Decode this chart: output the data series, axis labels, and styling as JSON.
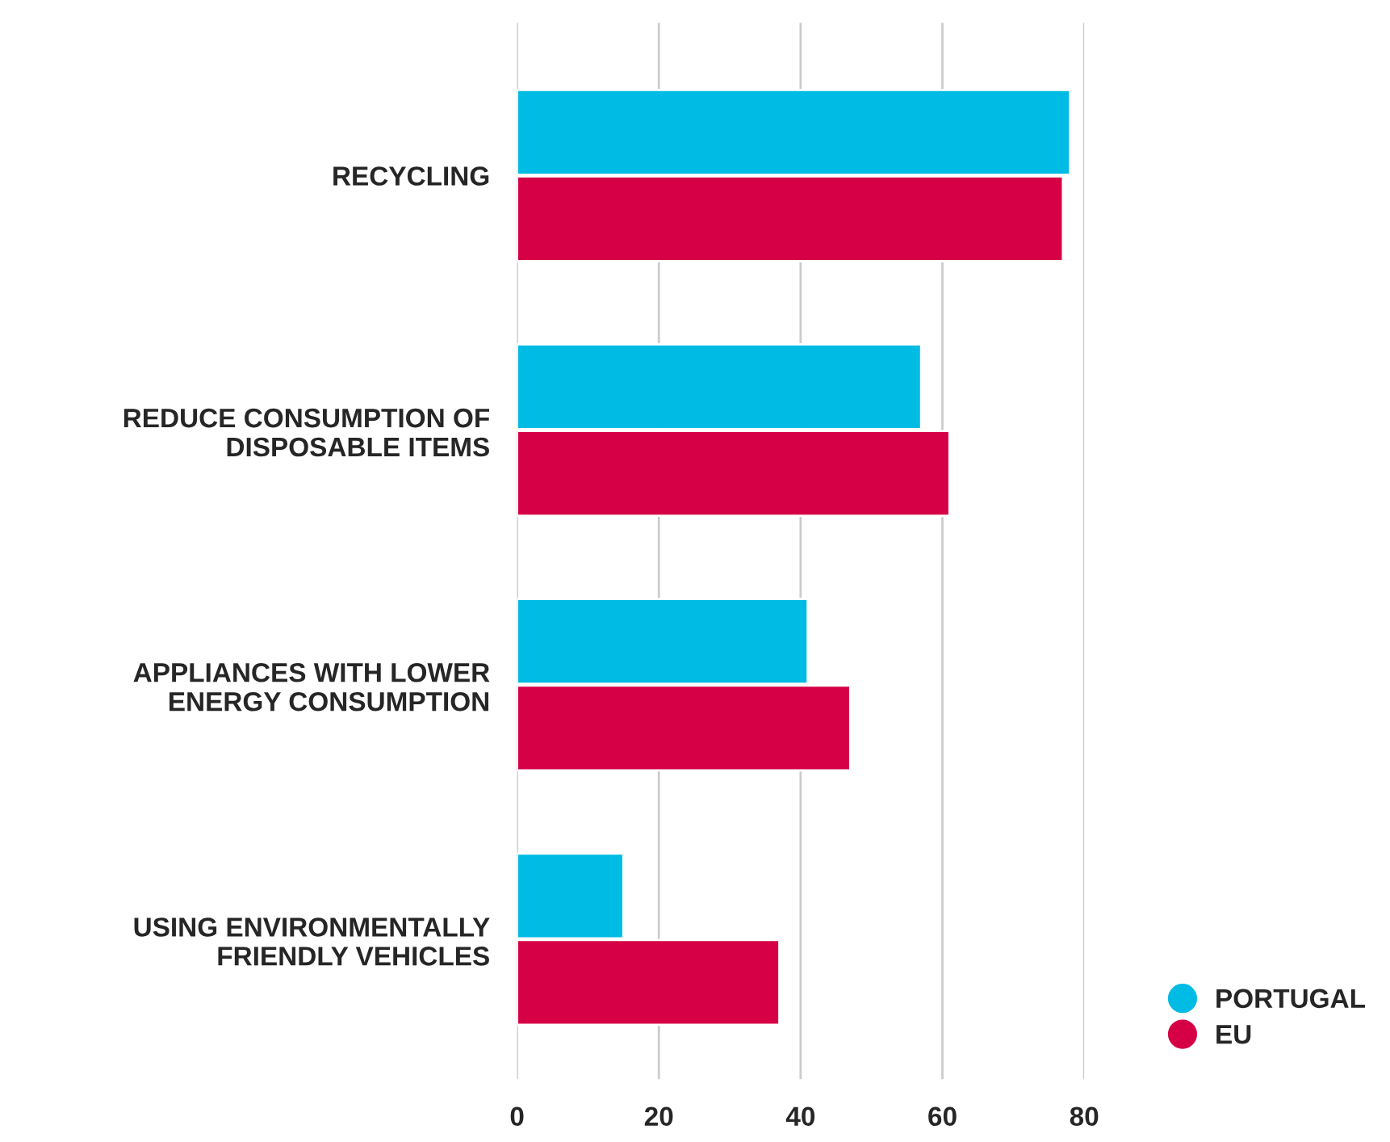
{
  "chart_data": {
    "type": "bar",
    "orientation": "horizontal",
    "categories": [
      "RECYCLING",
      "REDUCE CONSUMPTION OF\nDISPOSABLE ITEMS",
      "APPLIANCES WITH LOWER\nENERGY CONSUMPTION",
      "USING ENVIRONMENTALLY\nFRIENDLY VEHICLES"
    ],
    "series": [
      {
        "name": "PORTUGAL",
        "color": "#00bbe3",
        "values": [
          78,
          57,
          41,
          15
        ]
      },
      {
        "name": "EU",
        "color": "#d50045",
        "values": [
          77,
          61,
          47,
          37
        ]
      }
    ],
    "xlim": [
      0,
      80
    ],
    "xticks": [
      0,
      20,
      40,
      60,
      80
    ],
    "grid": "x",
    "legend": "bottom right",
    "marker": "circle"
  }
}
